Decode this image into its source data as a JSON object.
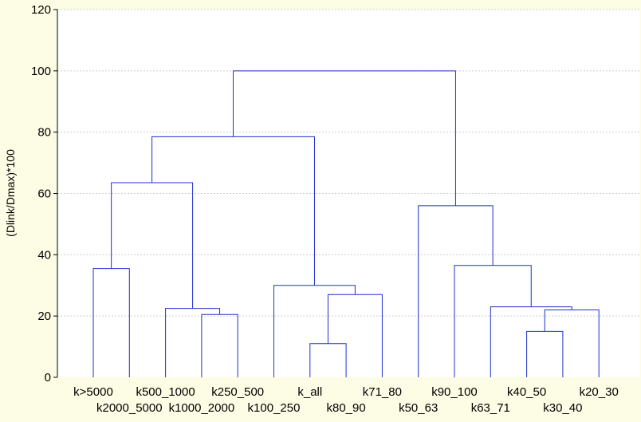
{
  "chart_data": {
    "type": "dendrogram",
    "ylabel": "(Dlink/Dmax)*100",
    "ylim": [
      0,
      120
    ],
    "yticks": [
      0,
      20,
      40,
      60,
      80,
      100,
      120
    ],
    "grid": true,
    "colors": {
      "background": "#fdfce4",
      "plot_background": "#ffffff",
      "branch": "#1f2fd0",
      "axis": "#000000",
      "grid": "#cfcfcf"
    },
    "leaves": [
      "k>5000",
      "k2000_5000",
      "k500_1000",
      "k1000_2000",
      "k250_500",
      "k100_250",
      "k_all",
      "k80_90",
      "k71_80",
      "k50_63",
      "k90_100",
      "k63_71",
      "k40_50",
      "k30_40",
      "k20_30"
    ],
    "merges": [
      {
        "id": "m1",
        "left": "k>5000",
        "right": "k2000_5000",
        "height": 35.5
      },
      {
        "id": "m2",
        "left": "k1000_2000",
        "right": "k250_500",
        "height": 20.5
      },
      {
        "id": "m3",
        "left": "k500_1000",
        "right": "m2",
        "height": 22.5
      },
      {
        "id": "m4",
        "left": "m1",
        "right": "m3",
        "height": 63.5
      },
      {
        "id": "m5",
        "left": "k_all",
        "right": "k80_90",
        "height": 11
      },
      {
        "id": "m6",
        "left": "m5",
        "right": "k71_80",
        "height": 27
      },
      {
        "id": "m7",
        "left": "k100_250",
        "right": "m6",
        "height": 30
      },
      {
        "id": "m8",
        "left": "m4",
        "right": "m7",
        "height": 78.5
      },
      {
        "id": "m9",
        "left": "k40_50",
        "right": "k30_40",
        "height": 15
      },
      {
        "id": "m10",
        "left": "m9",
        "right": "k20_30",
        "height": 22
      },
      {
        "id": "m11",
        "left": "k63_71",
        "right": "m10",
        "height": 23
      },
      {
        "id": "m12",
        "left": "k90_100",
        "right": "m11",
        "height": 36.5
      },
      {
        "id": "m13",
        "left": "k50_63",
        "right": "m12",
        "height": 56
      },
      {
        "id": "m14",
        "left": "m8",
        "right": "m13",
        "height": 100
      }
    ]
  }
}
